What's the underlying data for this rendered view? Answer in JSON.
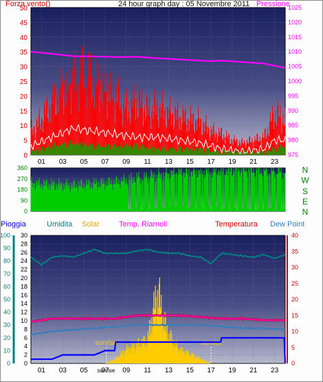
{
  "title": "24 hour graph day : 05 Novembre 2011",
  "colors": {
    "wind": "#ff0000",
    "gust": "#ffffff",
    "avgwind": "#00aa00",
    "pressure": "#ff00ff",
    "direction": "#00cc00",
    "rain": "#0000ff",
    "humidity": "#008080",
    "solar": "#ffcc00",
    "appTemp": "#ff00ff",
    "temperature": "#cc0000",
    "dewpoint": "#2f7fbf",
    "axisLeft": "#cc0000",
    "axisPressure": "#ff00ff",
    "axisRain": "#0000cc",
    "axisHum": "#008080",
    "axisDir": "#008000"
  },
  "chart_data": [
    {
      "type": "line",
      "panel": "top",
      "legend_left": "Forza vento()",
      "legend_right": "Pressione",
      "x_ticks": [
        "01",
        "03",
        "05",
        "07",
        "09",
        "11",
        "13",
        "15",
        "17",
        "19",
        "21",
        "23"
      ],
      "y_left_ticks": [
        "0",
        "5",
        "10",
        "15",
        "20",
        "25",
        "30",
        "35",
        "40",
        "45",
        "50"
      ],
      "y_left_range": [
        0,
        50
      ],
      "y_right_ticks": [
        "975",
        "980",
        "985",
        "990",
        "995",
        "1000",
        "1005",
        "1010",
        "1015",
        "1020",
        "1025"
      ],
      "y_right_range": [
        975,
        1025
      ],
      "series": [
        {
          "key": "pressure",
          "x": [
            0,
            2,
            4,
            6,
            8,
            10,
            12,
            14,
            16,
            17,
            18,
            20,
            22,
            24
          ],
          "y": [
            1010,
            1009.3,
            1008.5,
            1008.4,
            1008.2,
            1008.3,
            1007.8,
            1007.4,
            1007,
            1006.8,
            1007,
            1006.5,
            1006,
            1004.5
          ]
        },
        {
          "key": "wind",
          "x": [
            0,
            1,
            2,
            3,
            4,
            5,
            6,
            7,
            8,
            9,
            10,
            11,
            12,
            13,
            14,
            15,
            16,
            17,
            18,
            19,
            20,
            21,
            22,
            23,
            24
          ],
          "y": [
            8,
            12,
            18,
            22,
            25,
            28,
            24,
            22,
            20,
            16,
            18,
            15,
            16,
            14,
            13,
            12,
            11,
            8,
            7,
            5,
            4,
            5,
            6,
            14,
            12
          ]
        },
        {
          "key": "gust",
          "x": [
            0,
            2,
            4,
            6,
            8,
            10,
            12,
            14,
            16,
            18,
            20,
            22,
            23,
            24
          ],
          "y": [
            3,
            6,
            9,
            8,
            7,
            6,
            6,
            5,
            4,
            2,
            1,
            2,
            5,
            5
          ]
        },
        {
          "key": "avgwind",
          "x": [
            0,
            2,
            4,
            6,
            8,
            10,
            12,
            14,
            16,
            18,
            20,
            22,
            24
          ],
          "y": [
            1,
            3,
            4,
            3,
            3,
            3,
            2,
            2,
            2,
            1,
            1,
            1,
            3
          ]
        }
      ]
    },
    {
      "type": "area",
      "panel": "direction",
      "y_ticks": [
        "0",
        "90",
        "180",
        "270",
        "360"
      ],
      "y_range": [
        0,
        360
      ],
      "compass": [
        "N",
        "W",
        "S",
        "E",
        "N"
      ],
      "series": [
        {
          "key": "direction",
          "x": [
            0,
            2,
            4,
            6,
            8,
            10,
            12,
            14,
            16,
            18,
            20,
            22,
            24
          ],
          "y": [
            230,
            220,
            210,
            225,
            240,
            280,
            300,
            320,
            330,
            340,
            345,
            340,
            330
          ]
        }
      ]
    },
    {
      "type": "line",
      "panel": "bottom",
      "legend": [
        "Pioggia",
        "Umidita",
        "Solar",
        "Temp. Riarnoli",
        "Temperatura",
        "Dew Point"
      ],
      "x_ticks": [
        "01",
        "03",
        "05",
        "07",
        "09",
        "11",
        "13",
        "15",
        "17",
        "19",
        "21",
        "23"
      ],
      "sunrise_label": "sunrise",
      "sunset_label": "sunset",
      "sunrise_hour": 7.1,
      "sunset_hour": 17.0,
      "y_rain_ticks": [
        "0",
        "10",
        "20",
        "30",
        "40",
        "50",
        "60",
        "70",
        "80",
        "90",
        "100"
      ],
      "y_rain_range": [
        0,
        100
      ],
      "y_hum_ticks": [
        "0",
        "2",
        "4",
        "6",
        "8",
        "10",
        "12",
        "14",
        "16",
        "18",
        "20",
        "22",
        "24",
        "26",
        "28",
        "30"
      ],
      "y_hum_range": [
        0,
        30
      ],
      "y_temp_ticks": [
        "0",
        "5",
        "10",
        "15",
        "20",
        "25",
        "30",
        "35",
        "40"
      ],
      "y_temp_range": [
        0,
        40
      ],
      "series": [
        {
          "key": "humidity",
          "x": [
            0,
            1,
            2,
            3,
            4,
            5,
            6,
            7,
            8,
            9,
            10,
            11,
            12,
            13,
            14,
            15,
            16,
            17,
            18,
            19,
            20,
            21,
            22,
            23,
            24
          ],
          "y": [
            83,
            77,
            83,
            84,
            83,
            86,
            89,
            86,
            86,
            86,
            88,
            89,
            87,
            86,
            86,
            84,
            83,
            78,
            86,
            85,
            84,
            83,
            85,
            82,
            85
          ]
        },
        {
          "key": "appTemp",
          "x": [
            0,
            2,
            4,
            6,
            8,
            10,
            12,
            14,
            16,
            18,
            20,
            22,
            24
          ],
          "y": [
            13,
            14,
            14,
            14,
            14,
            15,
            15,
            15,
            14.5,
            14,
            14,
            13.5,
            13.5
          ]
        },
        {
          "key": "temperature",
          "x": [
            0,
            2,
            4,
            6,
            8,
            10,
            12,
            14,
            16,
            18,
            20,
            22,
            24
          ],
          "y": [
            13,
            14,
            14,
            14,
            14,
            15,
            15,
            15,
            14.5,
            14,
            14,
            13.5,
            13.5
          ]
        },
        {
          "key": "dewpoint",
          "x": [
            0,
            2,
            4,
            6,
            8,
            10,
            12,
            14,
            16,
            18,
            20,
            22,
            24
          ],
          "y": [
            9,
            10,
            10.5,
            11,
            11.5,
            12,
            12,
            12,
            12,
            11.5,
            11,
            11,
            10.5
          ]
        },
        {
          "key": "rain",
          "x": [
            0,
            1,
            2,
            3,
            4,
            5,
            6,
            7,
            7.9,
            8,
            9,
            10,
            11,
            12,
            13,
            14,
            15,
            16,
            17,
            17.9,
            18,
            19,
            20,
            21,
            22,
            23,
            23.9,
            24
          ],
          "y": [
            1,
            1,
            1,
            2,
            2,
            2,
            2,
            3,
            3,
            5,
            5,
            5,
            5,
            5,
            5,
            5,
            5,
            5,
            5,
            5,
            6,
            6,
            6,
            6,
            6,
            6,
            6,
            0
          ]
        },
        {
          "key": "solar",
          "x": [
            7,
            8,
            9,
            10,
            11,
            11.5,
            12,
            12.5,
            13,
            14,
            15,
            16,
            17
          ],
          "y": [
            0,
            1,
            3,
            4,
            5,
            11,
            16,
            10,
            6,
            3,
            2,
            1,
            0
          ]
        }
      ]
    }
  ]
}
